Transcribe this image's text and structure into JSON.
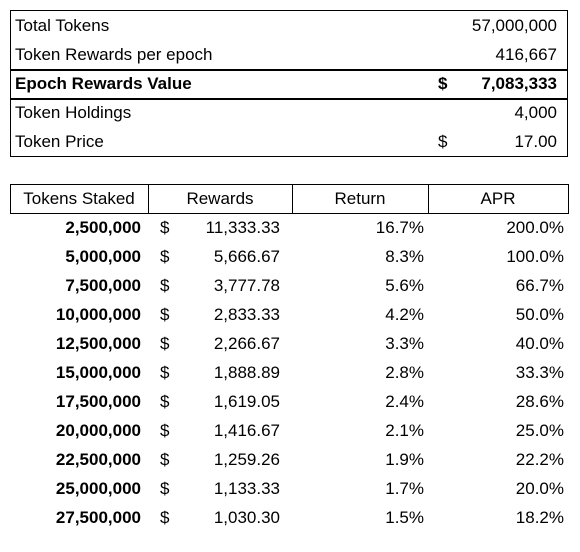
{
  "summary": {
    "rows": [
      {
        "label": "Total Tokens",
        "value": "57,000,000"
      },
      {
        "label": "Token Rewards per epoch",
        "value": "416,667"
      },
      {
        "label": "Epoch Rewards Value",
        "currency": "$",
        "value": "7,083,333"
      },
      {
        "label": "Token Holdings",
        "value": "4,000"
      },
      {
        "label": "Token Price",
        "currency": "$",
        "value": "17.00"
      }
    ]
  },
  "table": {
    "header": [
      "Tokens Staked",
      "Rewards",
      "Return",
      "APR"
    ],
    "rows": [
      {
        "staked": "2,500,000",
        "currency": "$",
        "rewards": "11,333.33",
        "return": "16.7%",
        "apr": "200.0%"
      },
      {
        "staked": "5,000,000",
        "currency": "$",
        "rewards": "5,666.67",
        "return": "8.3%",
        "apr": "100.0%"
      },
      {
        "staked": "7,500,000",
        "currency": "$",
        "rewards": "3,777.78",
        "return": "5.6%",
        "apr": "66.7%"
      },
      {
        "staked": "10,000,000",
        "currency": "$",
        "rewards": "2,833.33",
        "return": "4.2%",
        "apr": "50.0%"
      },
      {
        "staked": "12,500,000",
        "currency": "$",
        "rewards": "2,266.67",
        "return": "3.3%",
        "apr": "40.0%"
      },
      {
        "staked": "15,000,000",
        "currency": "$",
        "rewards": "1,888.89",
        "return": "2.8%",
        "apr": "33.3%"
      },
      {
        "staked": "17,500,000",
        "currency": "$",
        "rewards": "1,619.05",
        "return": "2.4%",
        "apr": "28.6%"
      },
      {
        "staked": "20,000,000",
        "currency": "$",
        "rewards": "1,416.67",
        "return": "2.1%",
        "apr": "25.0%"
      },
      {
        "staked": "22,500,000",
        "currency": "$",
        "rewards": "1,259.26",
        "return": "1.9%",
        "apr": "22.2%"
      },
      {
        "staked": "25,000,000",
        "currency": "$",
        "rewards": "1,133.33",
        "return": "1.7%",
        "apr": "20.0%"
      },
      {
        "staked": "27,500,000",
        "currency": "$",
        "rewards": "1,030.30",
        "return": "1.5%",
        "apr": "18.2%"
      }
    ]
  }
}
